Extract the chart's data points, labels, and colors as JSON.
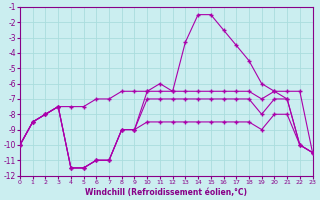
{
  "xlabel": "Windchill (Refroidissement éolien,°C)",
  "background_color": "#cbeef0",
  "grid_color": "#aadddd",
  "line_color": "#aa00aa",
  "xlim": [
    0,
    23
  ],
  "ylim": [
    -12,
    -1
  ],
  "yticks": [
    -12,
    -11,
    -10,
    -9,
    -8,
    -7,
    -6,
    -5,
    -4,
    -3,
    -2,
    -1
  ],
  "xticks": [
    0,
    1,
    2,
    3,
    4,
    5,
    6,
    7,
    8,
    9,
    10,
    11,
    12,
    13,
    14,
    15,
    16,
    17,
    18,
    19,
    20,
    21,
    22,
    23
  ],
  "series": [
    {
      "x": [
        0,
        1,
        2,
        3,
        4,
        5,
        6,
        7,
        8,
        9,
        10,
        11,
        12,
        13,
        14,
        15,
        16,
        17,
        18,
        19,
        20,
        21,
        22,
        23
      ],
      "y": [
        -10,
        -8.5,
        -8,
        -7.5,
        -11.5,
        -11.5,
        -11,
        -11,
        -9,
        -9,
        -6.5,
        -6.0,
        -6.5,
        -3.3,
        -1.5,
        -1.5,
        -2.5,
        -3.5,
        -4.5,
        -6.0,
        -6.5,
        -7.0,
        -10,
        -10.5
      ]
    },
    {
      "x": [
        0,
        1,
        2,
        3,
        4,
        5,
        6,
        7,
        8,
        9,
        10,
        11,
        12,
        13,
        14,
        15,
        16,
        17,
        18,
        19,
        20,
        21,
        22,
        23
      ],
      "y": [
        -10,
        -8.5,
        -8,
        -7.5,
        -7.5,
        -7.5,
        -7.0,
        -7.0,
        -6.5,
        -6.5,
        -6.5,
        -6.5,
        -6.5,
        -6.5,
        -6.5,
        -6.5,
        -6.5,
        -6.5,
        -6.5,
        -7.0,
        -6.5,
        -6.5,
        -6.5,
        -10.5
      ]
    },
    {
      "x": [
        0,
        1,
        2,
        3,
        4,
        5,
        6,
        7,
        8,
        9,
        10,
        11,
        12,
        13,
        14,
        15,
        16,
        17,
        18,
        19,
        20,
        21,
        22,
        23
      ],
      "y": [
        -10,
        -8.5,
        -8,
        -7.5,
        -11.5,
        -11.5,
        -11,
        -11,
        -9,
        -9,
        -7.0,
        -7.0,
        -7.0,
        -7.0,
        -7.0,
        -7.0,
        -7.0,
        -7.0,
        -7.0,
        -8.0,
        -7.0,
        -7.0,
        -10,
        -10.5
      ]
    },
    {
      "x": [
        0,
        1,
        2,
        3,
        4,
        5,
        6,
        7,
        8,
        9,
        10,
        11,
        12,
        13,
        14,
        15,
        16,
        17,
        18,
        19,
        20,
        21,
        22,
        23
      ],
      "y": [
        -10,
        -8.5,
        -8,
        -7.5,
        -11.5,
        -11.5,
        -11,
        -11,
        -9,
        -9,
        -8.5,
        -8.5,
        -8.5,
        -8.5,
        -8.5,
        -8.5,
        -8.5,
        -8.5,
        -8.5,
        -9.0,
        -8.0,
        -8.0,
        -10,
        -10.5
      ]
    }
  ]
}
